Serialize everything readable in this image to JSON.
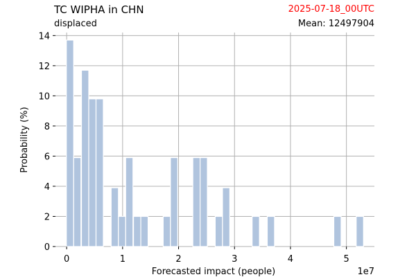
{
  "header": {
    "title": "TC WIPHA in CHN",
    "subtitle": "displaced",
    "date": "2025-07-18_00UTC",
    "mean": "Mean: 12497904"
  },
  "colors": {
    "bar": "#b0c4de",
    "grid": "#b0b0b0",
    "date": "#ff0000"
  },
  "chart_data": {
    "type": "bar",
    "title": "TC WIPHA in CHN",
    "subtitle": "displaced",
    "xlabel": "Forecasted impact (people)",
    "ylabel": "Probability (%)",
    "x_offset_label": "1e7",
    "xlim": [
      -0.2,
      5.5
    ],
    "ylim": [
      0,
      14.2
    ],
    "x_ticks": [
      0,
      1,
      2,
      3,
      4,
      5
    ],
    "y_ticks": [
      0,
      2,
      4,
      6,
      8,
      10,
      12,
      14
    ],
    "grid": true,
    "bar_width": 0.13,
    "bars": [
      {
        "x": 0.06,
        "y": 13.7
      },
      {
        "x": 0.19,
        "y": 5.9
      },
      {
        "x": 0.33,
        "y": 11.7
      },
      {
        "x": 0.46,
        "y": 9.8
      },
      {
        "x": 0.59,
        "y": 9.8
      },
      {
        "x": 0.86,
        "y": 3.9
      },
      {
        "x": 0.99,
        "y": 2.0
      },
      {
        "x": 1.12,
        "y": 5.9
      },
      {
        "x": 1.26,
        "y": 2.0
      },
      {
        "x": 1.39,
        "y": 2.0
      },
      {
        "x": 1.79,
        "y": 2.0
      },
      {
        "x": 1.92,
        "y": 5.9
      },
      {
        "x": 2.32,
        "y": 5.9
      },
      {
        "x": 2.45,
        "y": 5.9
      },
      {
        "x": 2.72,
        "y": 2.0
      },
      {
        "x": 2.85,
        "y": 3.9
      },
      {
        "x": 3.38,
        "y": 2.0
      },
      {
        "x": 3.65,
        "y": 2.0
      },
      {
        "x": 4.84,
        "y": 2.0
      },
      {
        "x": 5.24,
        "y": 2.0
      }
    ]
  }
}
